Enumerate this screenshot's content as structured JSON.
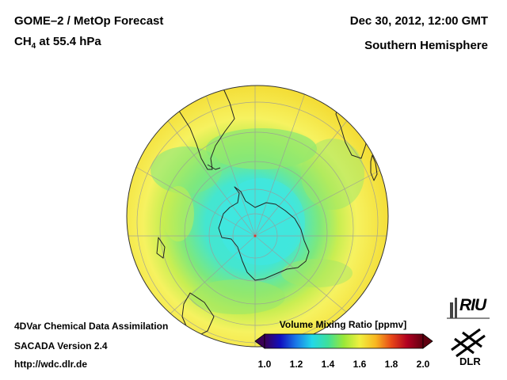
{
  "header": {
    "title_line1": "GOME–2 / MetOp Forecast",
    "species_prefix": "CH",
    "species_subscript": "4",
    "species_suffix": " at 55.4 hPa",
    "datetime": "Dec 30, 2012, 12:00 GMT",
    "region": "Southern Hemisphere"
  },
  "footer": {
    "method": "4DVar Chemical Data Assimilation",
    "version": "SACADA Version 2.4",
    "url": "http://wdc.dlr.de"
  },
  "colorbar": {
    "title": "Volume Mixing Ratio [ppmv]",
    "ticks": [
      "1.0",
      "1.2",
      "1.4",
      "1.6",
      "1.8",
      "2.0"
    ],
    "range": [
      1.0,
      2.0
    ],
    "stops": [
      "#3a0055",
      "#1010c0",
      "#1a7ae8",
      "#22d8e8",
      "#3ee09a",
      "#9ae838",
      "#f0f040",
      "#f8b820",
      "#e84818",
      "#b00020",
      "#600010"
    ]
  },
  "map": {
    "projection": "orthographic, south polar",
    "field_colors": {
      "low": "#3de8d8",
      "mid": "#7ee878",
      "high": "#f6f25e",
      "edge": "#f2d830"
    }
  },
  "logos": {
    "riu": "RIU",
    "dlr": "DLR"
  }
}
